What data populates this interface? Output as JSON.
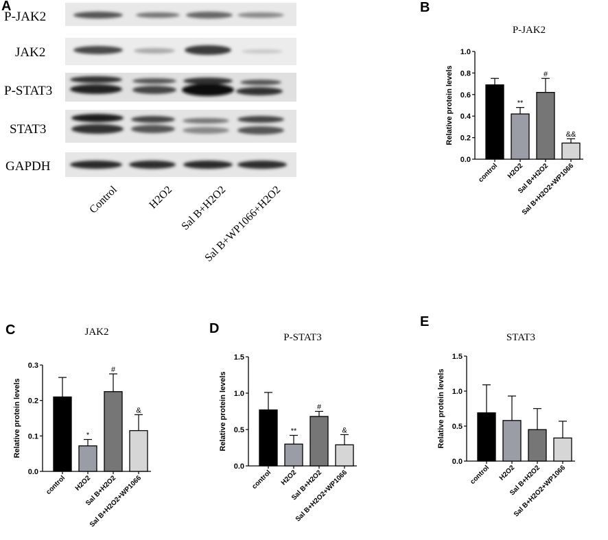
{
  "panels": {
    "A": "A",
    "B": "B",
    "C": "C",
    "D": "D",
    "E": "E"
  },
  "blot": {
    "rows": [
      "P-JAK2",
      "JAK2",
      "P-STAT3",
      "STAT3",
      "GAPDH"
    ],
    "lanes": [
      "Control",
      "H2O2",
      "Sal B+H2O2",
      "Sal B+WP1066+H2O2"
    ]
  },
  "chart_data": [
    {
      "id": "B",
      "type": "bar",
      "title": "P-JAK2",
      "ylabel": "Relative protein levels",
      "categories": [
        "control",
        "H2O2",
        "Sal B+H2O2",
        "Sal B+H2O2+WP1066"
      ],
      "values": [
        0.69,
        0.42,
        0.62,
        0.15
      ],
      "errors": [
        0.06,
        0.06,
        0.13,
        0.04
      ],
      "annotations": [
        "",
        "**",
        "#",
        "&&"
      ],
      "ylim": [
        0,
        1.0
      ],
      "yticks": [
        "0.0",
        "0.2",
        "0.4",
        "0.6",
        "0.8",
        "1.0"
      ],
      "colors": [
        "#000000",
        "#9a9ca6",
        "#767676",
        "#d6d6d6"
      ]
    },
    {
      "id": "C",
      "type": "bar",
      "title": "JAK2",
      "ylabel": "Relative protein levels",
      "categories": [
        "control",
        "H2O2",
        "Sal B+H2O2",
        "Sal B+H2O2+WP1066"
      ],
      "values": [
        0.21,
        0.072,
        0.225,
        0.115
      ],
      "errors": [
        0.055,
        0.018,
        0.05,
        0.045
      ],
      "annotations": [
        "",
        "*",
        "#",
        "&"
      ],
      "ylim": [
        0,
        0.3
      ],
      "yticks": [
        "0.0",
        "0.1",
        "0.2",
        "0.3"
      ],
      "colors": [
        "#000000",
        "#9a9ca6",
        "#767676",
        "#d6d6d6"
      ]
    },
    {
      "id": "D",
      "type": "bar",
      "title": "P-STAT3",
      "ylabel": "Relative protein levels",
      "categories": [
        "control",
        "H2O2",
        "Sal B+H2O2",
        "Sal B+H2O2+WP1066"
      ],
      "values": [
        0.77,
        0.3,
        0.68,
        0.29
      ],
      "errors": [
        0.24,
        0.12,
        0.07,
        0.14
      ],
      "annotations": [
        "",
        "**",
        "#",
        "&"
      ],
      "ylim": [
        0,
        1.5
      ],
      "yticks": [
        "0.0",
        "0.5",
        "1.0",
        "1.5"
      ],
      "colors": [
        "#000000",
        "#9a9ca6",
        "#767676",
        "#d6d6d6"
      ]
    },
    {
      "id": "E",
      "type": "bar",
      "title": "STAT3",
      "ylabel": "Relative protein levels",
      "categories": [
        "control",
        "H2O2",
        "Sal B+H2O2",
        "Sal B+H2O2+WP1066"
      ],
      "values": [
        0.69,
        0.58,
        0.45,
        0.33
      ],
      "errors": [
        0.4,
        0.35,
        0.3,
        0.24
      ],
      "annotations": [
        "",
        "",
        "",
        ""
      ],
      "ylim": [
        0,
        1.5
      ],
      "yticks": [
        "0.0",
        "0.5",
        "1.0",
        "1.5"
      ],
      "colors": [
        "#000000",
        "#9a9ca6",
        "#767676",
        "#d6d6d6"
      ]
    }
  ]
}
